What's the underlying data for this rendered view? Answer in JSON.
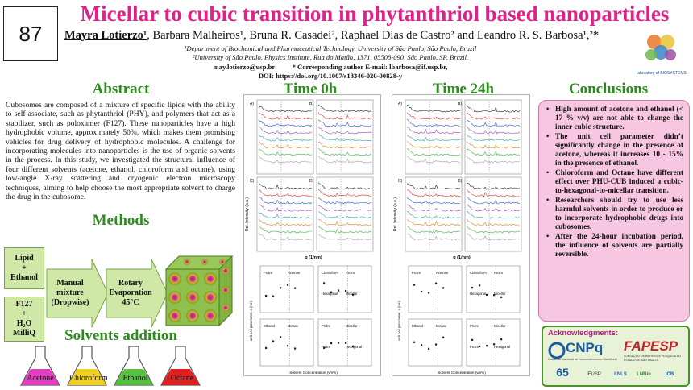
{
  "poster_number": "87",
  "title": "Micellar to cubic transition in phytanthriol based nanoparticles",
  "authors": {
    "first": "Mayra Lotierzo¹",
    "rest": ", Barbara Malheiros¹, Bruna R. Casadei², Raphael Dias de Castro² and Leandro R. S. Barbosa¹,²*"
  },
  "affiliations": [
    "¹Department of Biochemical and Pharmaceutical Technology, University of São Paulo, São Paulo, Brazil",
    "²University of São Paulo, Physics Institute, Rua do Matão, 1371, 05508-090, São Paulo, SP, Brazil."
  ],
  "contact": "may.lotierzo@usp.br          * Corresponding author E-mail: lbarbosa@if.usp.br,",
  "doi": "DOI: https://doi.org/10.1007/s13346-020-00828-y",
  "lab_logo_text": "laboratory of BIOSYSTEMS",
  "sections": {
    "abstract": "Abstract",
    "methods": "Methods",
    "solvents": "Solvents addition",
    "time0": "Time 0h",
    "time24": "Time 24h",
    "conclusions": "Conclusions"
  },
  "abstract_text": "Cubosomes are composed of a mixture of specific lipids with the ability to self-associate, such as phytanthriol (PHY), and polymers that act as a stabilizer, such as poloxamer (F127). These nanoparticles have a high hydrophobic volume, approximately 50%, which makes them promising vehicles for drug delivery of hydrophobic molecules. A challenge for incorporating molecules into nanoparticles is the use of organic solvents in the process. In this study, we investigated the structural influence of four different solvents (acetone, ethanol, chloroform and octane), using low-angle X-ray scattering and cryogenic electron microscopy techniques, aiming to help choose the most appropriate solvent to charge the drug in the cubosome.",
  "methods": {
    "box_lipid": "Lipid\n+\nEthanol",
    "box_f127": "F127\n+\nH₂O\nMilliQ",
    "step1": "Manual\nmixture\n(Dropwise)",
    "step2": "Rotary\nEvaporation\n45°C"
  },
  "solvents": [
    "Acetone",
    "Chloroform",
    "Ethanol",
    "Octane"
  ],
  "solvent_colors": [
    "#e040c0",
    "#f0d020",
    "#58c040",
    "#e02020"
  ],
  "plots": {
    "panel_labels": [
      "A)",
      "B)",
      "C)",
      "D)"
    ],
    "ylabel": "Rel. Intensity (a.u.)",
    "xlabel": "q (1/nm)",
    "lp_ylabel": "unit cell parameter, a (nm)",
    "lp_xlabel": "Solvent Concentration (v/v%)",
    "phase_labels_time0": [
      "Pn3m",
      "Acetone",
      "Chloroform",
      "Pn3m",
      "Hexagonal",
      "Micellar",
      "Ethanol",
      "Octane",
      "Pn3m",
      "Micellar",
      "Pn3m",
      "Hexagonal",
      "Micellar"
    ],
    "phase_labels_time24": [
      "Pn3m",
      "Acetone",
      "Chloroform",
      "Pn3m",
      "Hexagonal",
      "Micellar",
      "Ethanol",
      "Octane",
      "Pn3m",
      "Micellar",
      "Pn3m",
      "Hexagonal",
      "Micellar"
    ]
  },
  "conclusions": [
    "High amount of acetone and ethanol (< 17 % v/v) are not able to change the inner cubic structure.",
    "The unit cell parameter didn’t significantly change in the presence of acetone, whereas it increases 10 - 15% in the presence of ethanol.",
    "Chloroform and Octane have different effect over PHU-CUB induced a cubic-to-hexagonal-to-micellar transition.",
    "Researchers should try to use less harmful solvents in order to produce or to incorporate hydrophobic drugs into cubosomes.",
    "After the 24-hour incubation period, the influence of solvents are partially reversible."
  ],
  "acknowledgments": {
    "title": "Acknowledgments:",
    "cnpq": "CNPq",
    "cnpq_sub": "Conselho Nacional de Desenvolvimento Científico e Tecnológico",
    "fapesp": "FAPESP",
    "fapesp_sub": "FUNDAÇÃO DE AMPARO À PESQUISA DO ESTADO DE SÃO PAULO",
    "small_logos": [
      "65",
      "IFUSP",
      "LNLS",
      "LNBio",
      "ICB"
    ]
  },
  "colors": {
    "title": "#e0218a",
    "section": "#2e8b1f",
    "conclusions_bg": "#f7c6e0",
    "method_box": "#cfe8a8"
  }
}
